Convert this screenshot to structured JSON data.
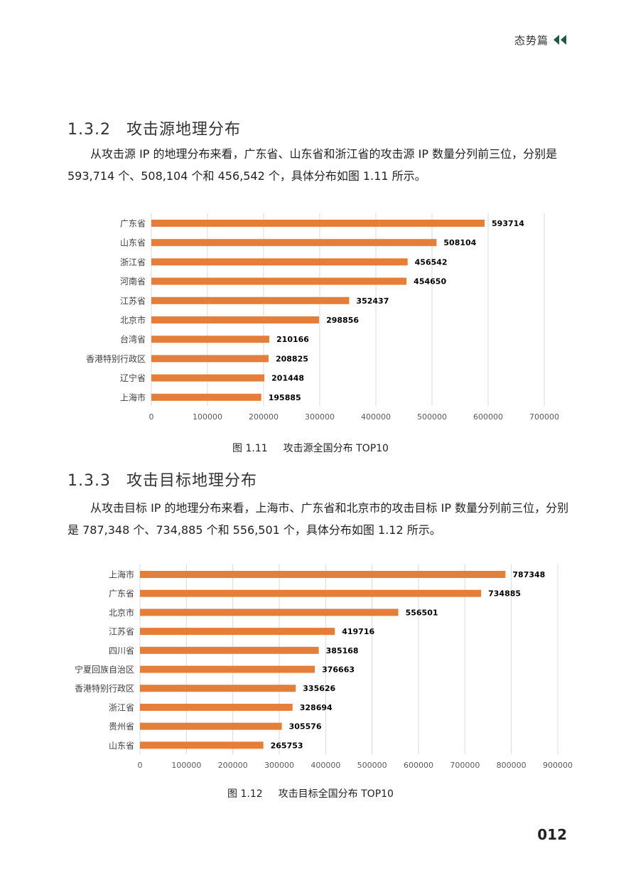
{
  "header": {
    "text": "态势篇",
    "icon": "double-chevron-left-icon",
    "icon_color": "#1f5a3e"
  },
  "section1": {
    "number": "1.3.2",
    "title": "攻击源地理分布",
    "paragraph": "从攻击源 IP 的地理分布来看，广东省、山东省和浙江省的攻击源 IP 数量分列前三位，分别是 593,714 个、508,104 个和 456,542 个，具体分布如图 1.11 所示。",
    "caption_number": "图 1.11",
    "caption_text": "攻击源全国分布 TOP10"
  },
  "section2": {
    "number": "1.3.3",
    "title": "攻击目标地理分布",
    "paragraph": "从攻击目标 IP 的地理分布来看，上海市、广东省和北京市的攻击目标 IP 数量分列前三位，分别是 787,348 个、734,885 个和 556,501 个，具体分布如图 1.12 所示。",
    "caption_number": "图 1.12",
    "caption_text": "攻击目标全国分布 TOP10"
  },
  "page_number": "012",
  "chart_data": [
    {
      "type": "bar",
      "orientation": "horizontal",
      "categories": [
        "广东省",
        "山东省",
        "浙江省",
        "河南省",
        "江苏省",
        "北京市",
        "台湾省",
        "香港特别行政区",
        "辽宁省",
        "上海市"
      ],
      "values": [
        593714,
        508104,
        456542,
        454650,
        352437,
        298856,
        210166,
        208825,
        201448,
        195885
      ],
      "xlim": [
        0,
        700000
      ],
      "ticks": [
        0,
        100000,
        200000,
        300000,
        400000,
        500000,
        600000,
        700000
      ],
      "grid": true,
      "bar_color": "#e57e38",
      "data_labels": true
    },
    {
      "type": "bar",
      "orientation": "horizontal",
      "categories": [
        "上海市",
        "广东省",
        "北京市",
        "江苏省",
        "四川省",
        "宁夏回族自治区",
        "香港特别行政区",
        "浙江省",
        "贵州省",
        "山东省"
      ],
      "values": [
        787348,
        734885,
        556501,
        419716,
        385168,
        376663,
        335626,
        328694,
        305576,
        265753
      ],
      "xlim": [
        0,
        900000
      ],
      "ticks": [
        0,
        100000,
        200000,
        300000,
        400000,
        500000,
        600000,
        700000,
        800000,
        900000
      ],
      "grid": true,
      "bar_color": "#e57e38",
      "data_labels": true
    }
  ]
}
